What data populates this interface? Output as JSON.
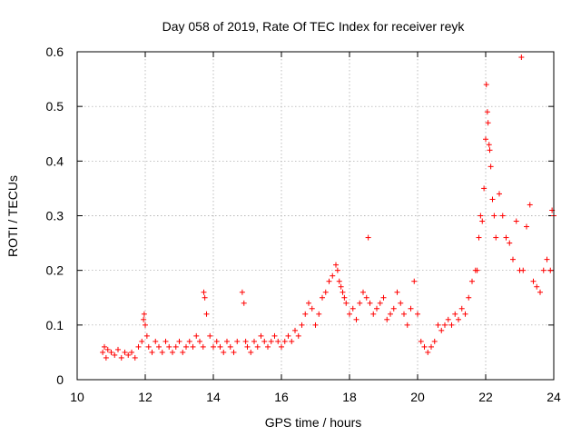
{
  "chart_data": {
    "type": "scatter",
    "title": "Day 058 of 2019, Rate Of TEC Index for receiver reyk",
    "xlabel": "GPS time / hours",
    "ylabel": "ROTI / TECUs",
    "xlim": [
      10,
      24
    ],
    "ylim": [
      0,
      0.6
    ],
    "xticks": [
      10,
      12,
      14,
      16,
      18,
      20,
      22,
      24
    ],
    "xtick_labels": [
      "10",
      "12",
      "14",
      "16",
      "18",
      "20",
      "22",
      "24"
    ],
    "yticks": [
      0,
      0.1,
      0.2,
      0.3,
      0.4,
      0.5,
      0.6
    ],
    "ytick_labels": [
      "0",
      "0.1",
      "0.2",
      "0.3",
      "0.4",
      "0.5",
      "0.6"
    ],
    "grid": true,
    "marker": "+",
    "color": "#ff0000",
    "series": [
      {
        "name": "ROTI",
        "x": [
          10.75,
          10.8,
          10.85,
          10.9,
          11.0,
          11.1,
          11.2,
          11.3,
          11.4,
          11.5,
          11.6,
          11.7,
          11.8,
          11.9,
          11.95,
          11.97,
          12.0,
          12.05,
          12.1,
          12.2,
          12.3,
          12.4,
          12.5,
          12.6,
          12.7,
          12.8,
          12.9,
          13.0,
          13.1,
          13.2,
          13.3,
          13.4,
          13.5,
          13.6,
          13.7,
          13.72,
          13.75,
          13.8,
          13.9,
          14.0,
          14.1,
          14.2,
          14.3,
          14.4,
          14.5,
          14.6,
          14.7,
          14.85,
          14.9,
          14.95,
          15.0,
          15.1,
          15.2,
          15.3,
          15.4,
          15.5,
          15.6,
          15.7,
          15.8,
          15.9,
          16.0,
          16.1,
          16.2,
          16.3,
          16.4,
          16.5,
          16.6,
          16.7,
          16.8,
          16.9,
          17.0,
          17.1,
          17.2,
          17.3,
          17.4,
          17.5,
          17.6,
          17.65,
          17.7,
          17.75,
          17.8,
          17.85,
          17.9,
          18.0,
          18.1,
          18.2,
          18.3,
          18.4,
          18.5,
          18.55,
          18.6,
          18.7,
          18.8,
          18.9,
          19.0,
          19.1,
          19.2,
          19.3,
          19.4,
          19.5,
          19.6,
          19.7,
          19.8,
          19.9,
          20.0,
          20.1,
          20.2,
          20.3,
          20.4,
          20.5,
          20.6,
          20.7,
          20.8,
          20.9,
          21.0,
          21.1,
          21.2,
          21.3,
          21.4,
          21.5,
          21.6,
          21.7,
          21.75,
          21.8,
          21.85,
          21.9,
          21.95,
          22.0,
          22.02,
          22.05,
          22.07,
          22.1,
          22.12,
          22.15,
          22.2,
          22.25,
          22.3,
          22.4,
          22.5,
          22.6,
          22.7,
          22.8,
          22.9,
          23.0,
          23.05,
          23.1,
          23.2,
          23.3,
          23.4,
          23.5,
          23.6,
          23.7,
          23.8,
          23.9,
          23.95,
          24.0
        ],
        "y": [
          0.05,
          0.06,
          0.04,
          0.055,
          0.05,
          0.045,
          0.055,
          0.04,
          0.05,
          0.045,
          0.05,
          0.04,
          0.06,
          0.07,
          0.11,
          0.12,
          0.1,
          0.08,
          0.06,
          0.05,
          0.07,
          0.06,
          0.05,
          0.07,
          0.06,
          0.05,
          0.06,
          0.07,
          0.05,
          0.06,
          0.07,
          0.06,
          0.08,
          0.07,
          0.06,
          0.16,
          0.15,
          0.12,
          0.08,
          0.06,
          0.07,
          0.06,
          0.05,
          0.07,
          0.06,
          0.05,
          0.07,
          0.16,
          0.14,
          0.07,
          0.06,
          0.05,
          0.07,
          0.06,
          0.08,
          0.07,
          0.06,
          0.07,
          0.08,
          0.07,
          0.06,
          0.07,
          0.08,
          0.07,
          0.09,
          0.08,
          0.1,
          0.12,
          0.14,
          0.13,
          0.1,
          0.12,
          0.15,
          0.16,
          0.18,
          0.19,
          0.21,
          0.2,
          0.18,
          0.17,
          0.16,
          0.15,
          0.14,
          0.12,
          0.13,
          0.11,
          0.14,
          0.16,
          0.15,
          0.26,
          0.14,
          0.12,
          0.13,
          0.14,
          0.15,
          0.11,
          0.12,
          0.13,
          0.16,
          0.14,
          0.12,
          0.1,
          0.13,
          0.18,
          0.12,
          0.07,
          0.06,
          0.05,
          0.06,
          0.07,
          0.1,
          0.09,
          0.1,
          0.11,
          0.1,
          0.12,
          0.11,
          0.13,
          0.12,
          0.15,
          0.18,
          0.2,
          0.2,
          0.26,
          0.3,
          0.29,
          0.35,
          0.44,
          0.54,
          0.49,
          0.47,
          0.43,
          0.42,
          0.39,
          0.33,
          0.3,
          0.26,
          0.34,
          0.3,
          0.26,
          0.25,
          0.22,
          0.29,
          0.2,
          0.59,
          0.2,
          0.28,
          0.32,
          0.18,
          0.17,
          0.16,
          0.2,
          0.22,
          0.2,
          0.31,
          0.3
        ]
      }
    ]
  }
}
